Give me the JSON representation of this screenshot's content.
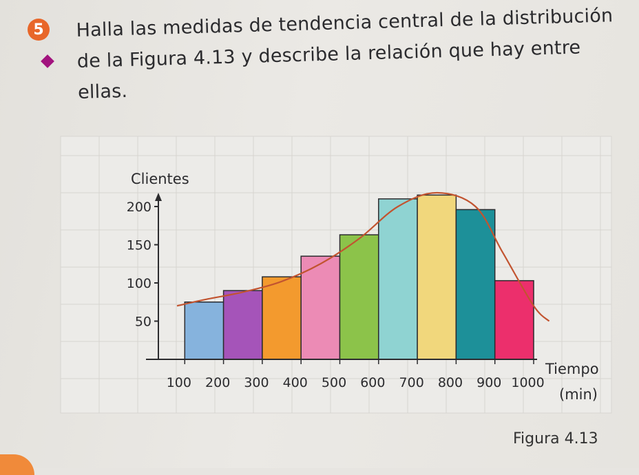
{
  "exercise": {
    "number": "5",
    "text": "Halla las medidas de tendencia central de la distribución de la Figura 4.13 y describe la relación que hay entre ellas.",
    "accent_color": "#e8672a",
    "marker_color": "#a2137e"
  },
  "caption": "Figura 4.13",
  "chart_data": {
    "type": "bar",
    "ylabel": "Clientes",
    "xlabel": "Tiempo",
    "xlabel_unit": "(min)",
    "y_ticks": [
      50,
      100,
      150,
      200
    ],
    "x_ticks": [
      100,
      200,
      300,
      400,
      500,
      600,
      700,
      800,
      900,
      1000
    ],
    "x_range": [
      0,
      1000
    ],
    "y_range": [
      0,
      230
    ],
    "grid": true,
    "bars": [
      {
        "x0": 100,
        "x1": 200,
        "value": 75,
        "color": "#86b3dd"
      },
      {
        "x0": 200,
        "x1": 300,
        "value": 90,
        "color": "#a554b9"
      },
      {
        "x0": 300,
        "x1": 400,
        "value": 108,
        "color": "#f39a2e"
      },
      {
        "x0": 400,
        "x1": 500,
        "value": 135,
        "color": "#ec8bb5"
      },
      {
        "x0": 500,
        "x1": 600,
        "value": 163,
        "color": "#8cc34a"
      },
      {
        "x0": 600,
        "x1": 700,
        "value": 210,
        "color": "#8fd3d2"
      },
      {
        "x0": 700,
        "x1": 800,
        "value": 215,
        "color": "#f1d77c"
      },
      {
        "x0": 800,
        "x1": 900,
        "value": 196,
        "color": "#1d9099"
      },
      {
        "x0": 900,
        "x1": 1000,
        "value": 103,
        "color": "#ec2f6c"
      }
    ],
    "curve": {
      "color": "#c25430",
      "points": [
        [
          80,
          70
        ],
        [
          150,
          78
        ],
        [
          250,
          88
        ],
        [
          350,
          102
        ],
        [
          450,
          125
        ],
        [
          550,
          158
        ],
        [
          650,
          200
        ],
        [
          750,
          218
        ],
        [
          850,
          200
        ],
        [
          920,
          140
        ],
        [
          1000,
          70
        ],
        [
          1040,
          50
        ]
      ]
    }
  }
}
